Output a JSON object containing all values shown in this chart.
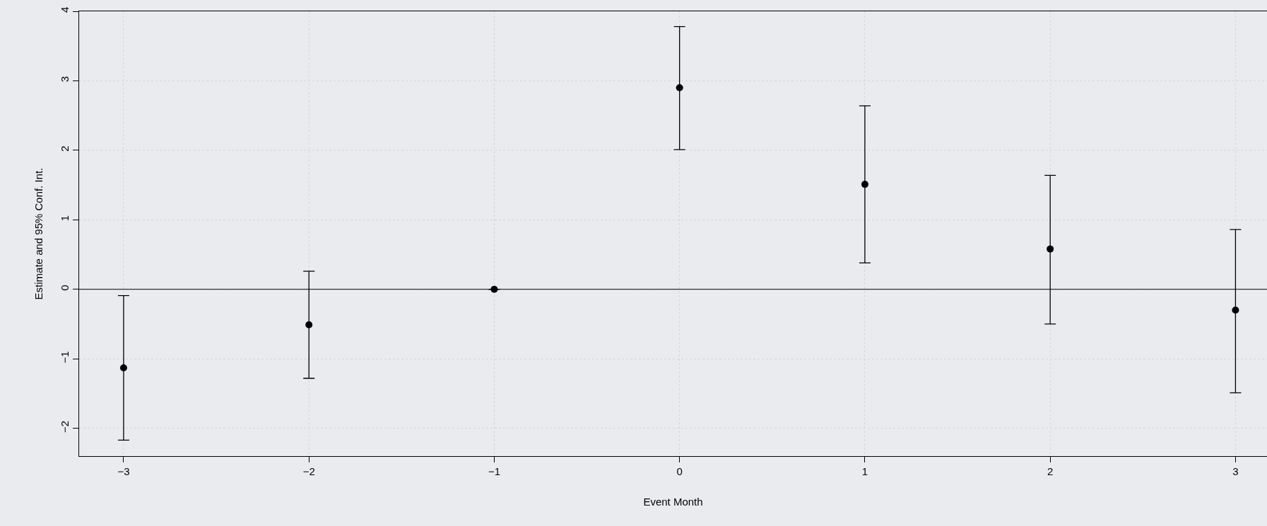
{
  "chart_data": {
    "type": "scatter",
    "xlabel": "Event Month",
    "ylabel": "Estimate and 95% Conf. Int.",
    "x": [
      -3,
      -2,
      -1,
      0,
      1,
      2,
      3
    ],
    "values": [
      -1.13,
      -0.51,
      0,
      2.9,
      1.51,
      0.58,
      -0.3
    ],
    "errors": [
      [
        -2.17,
        -0.09
      ],
      [
        -1.28,
        0.26
      ],
      null,
      [
        2.01,
        3.78
      ],
      [
        0.38,
        2.64
      ],
      [
        -0.5,
        1.64
      ],
      [
        -1.49,
        0.86
      ]
    ],
    "color": "#000000",
    "marker": "circle",
    "xlim": [
      -3.24,
      3.17
    ],
    "xticks": [
      -3,
      -2,
      -1,
      0,
      1,
      2,
      3
    ],
    "ylim": [
      -2.4,
      4
    ],
    "yticks": [
      -2,
      -1,
      0,
      1,
      2,
      3,
      4
    ],
    "ref_lines": [
      {
        "axis": "y",
        "value": 0,
        "color": "#000000"
      }
    ],
    "grid": true
  }
}
